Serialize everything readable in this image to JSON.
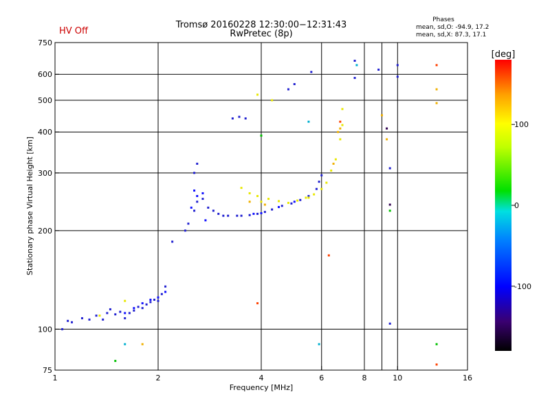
{
  "header": {
    "status": "HV Off",
    "status_color": "#cc0000",
    "title": "Tromsø 20160228 12:30:00−12:31:43",
    "subtitle": "RwPretec (8p)",
    "phase_heading": "Phases",
    "phase_o": "mean, sd,O: -94.9, 17.2",
    "phase_x": "mean, sd,X:  87.3, 17.1"
  },
  "chart_data": {
    "type": "scatter",
    "xlabel": "Frequency [MHz]",
    "ylabel": "Stationary phase Virtual Height [km]",
    "x_scale": "log",
    "y_scale": "log",
    "xlim": [
      1,
      16
    ],
    "ylim": [
      75,
      750
    ],
    "x_ticks": [
      1,
      2,
      4,
      6,
      8,
      10,
      16
    ],
    "y_ticks": [
      75,
      100,
      200,
      300,
      400,
      500,
      600,
      750
    ],
    "x_major_lines": [
      2,
      4,
      6,
      10
    ],
    "x_minor_lines": [
      8,
      9
    ],
    "y_major_lines": [
      100,
      200,
      300,
      400,
      500,
      600
    ],
    "grid": true,
    "colorbar": {
      "label": "[deg]",
      "min": -180,
      "max": 180,
      "ticks": [
        100,
        0,
        -100
      ]
    },
    "series": [
      {
        "color": "#2020d0",
        "points": [
          [
            1.05,
            100
          ],
          [
            1.09,
            106
          ],
          [
            1.12,
            105
          ],
          [
            1.2,
            108
          ],
          [
            1.26,
            107
          ],
          [
            1.32,
            110
          ],
          [
            1.38,
            107
          ],
          [
            1.42,
            112
          ],
          [
            1.45,
            115
          ],
          [
            1.5,
            111
          ],
          [
            1.55,
            113
          ],
          [
            1.6,
            108
          ],
          [
            1.65,
            112
          ],
          [
            1.7,
            114
          ],
          [
            1.75,
            117
          ],
          [
            1.8,
            116
          ],
          [
            1.85,
            119
          ],
          [
            1.9,
            121
          ],
          [
            1.95,
            123
          ],
          [
            2.0,
            122
          ],
          [
            2.05,
            128
          ],
          [
            2.1,
            135
          ],
          [
            2.2,
            185
          ],
          [
            2.4,
            200
          ],
          [
            2.45,
            210
          ],
          [
            2.55,
            230
          ],
          [
            2.6,
            245
          ],
          [
            2.7,
            250
          ],
          [
            2.8,
            235
          ],
          [
            2.9,
            230
          ],
          [
            3.0,
            225
          ],
          [
            3.1,
            222
          ],
          [
            3.2,
            222
          ],
          [
            3.4,
            222
          ],
          [
            3.5,
            222
          ],
          [
            3.7,
            223
          ],
          [
            3.9,
            225
          ],
          [
            4.1,
            228
          ],
          [
            4.3,
            232
          ],
          [
            4.6,
            238
          ],
          [
            4.9,
            242
          ],
          [
            5.2,
            248
          ],
          [
            5.5,
            255
          ],
          [
            5.8,
            268
          ],
          [
            5.9,
            282
          ],
          [
            6.0,
            295
          ],
          [
            2.6,
            320
          ],
          [
            2.55,
            300
          ],
          [
            3.3,
            440
          ],
          [
            3.45,
            445
          ],
          [
            3.6,
            440
          ],
          [
            4.8,
            540
          ],
          [
            5.0,
            560
          ],
          [
            5.6,
            610
          ],
          [
            7.5,
            660
          ],
          [
            7.5,
            585
          ],
          [
            8.8,
            620
          ],
          [
            9.5,
            104
          ],
          [
            9.5,
            310
          ],
          [
            10,
            640
          ],
          [
            10,
            590
          ]
        ]
      },
      {
        "color": "#1010ff",
        "points": [
          [
            1.6,
            112
          ],
          [
            1.7,
            116
          ],
          [
            1.8,
            120
          ],
          [
            1.9,
            123
          ],
          [
            2.0,
            125
          ],
          [
            2.1,
            130
          ],
          [
            2.5,
            235
          ],
          [
            2.6,
            255
          ],
          [
            2.7,
            260
          ],
          [
            2.75,
            215
          ],
          [
            2.55,
            265
          ],
          [
            3.8,
            225
          ],
          [
            4.0,
            226
          ],
          [
            4.5,
            236
          ],
          [
            5.0,
            245
          ]
        ]
      },
      {
        "color": "#e8e800",
        "points": [
          [
            3.5,
            270
          ],
          [
            3.7,
            260
          ],
          [
            3.9,
            255
          ],
          [
            4.2,
            250
          ],
          [
            4.5,
            246
          ],
          [
            4.8,
            243
          ],
          [
            5.1,
            247
          ],
          [
            5.4,
            252
          ],
          [
            5.7,
            258
          ],
          [
            6.0,
            268
          ],
          [
            6.2,
            280
          ],
          [
            6.4,
            305
          ],
          [
            6.6,
            330
          ],
          [
            6.8,
            380
          ],
          [
            6.9,
            420
          ],
          [
            6.9,
            470
          ],
          [
            3.9,
            520
          ],
          [
            4.3,
            500
          ],
          [
            1.35,
            110
          ],
          [
            1.6,
            122
          ],
          [
            4.0,
            245
          ],
          [
            5.5,
            252
          ]
        ]
      },
      {
        "color": "#f0b000",
        "points": [
          [
            6.7,
            400
          ],
          [
            6.8,
            410
          ],
          [
            6.5,
            320
          ],
          [
            3.7,
            245
          ],
          [
            4.1,
            240
          ],
          [
            13.0,
            540
          ],
          [
            9.3,
            380
          ],
          [
            9.0,
            450
          ],
          [
            1.8,
            90
          ],
          [
            13,
            490
          ]
        ]
      },
      {
        "color": "#ff4000",
        "points": [
          [
            6.8,
            430
          ],
          [
            13.0,
            640
          ],
          [
            6.3,
            168
          ],
          [
            3.9,
            120
          ],
          [
            13,
            78
          ]
        ]
      },
      {
        "color": "#00c000",
        "points": [
          [
            13,
            90
          ],
          [
            1.5,
            80
          ],
          [
            9.5,
            230
          ],
          [
            4.0,
            390
          ]
        ]
      },
      {
        "color": "#00b0d0",
        "points": [
          [
            5.5,
            430
          ],
          [
            7.6,
            640
          ],
          [
            5.9,
            90
          ],
          [
            1.6,
            90
          ]
        ]
      },
      {
        "color": "#300050",
        "points": [
          [
            9.3,
            410
          ],
          [
            9.5,
            240
          ]
        ]
      }
    ]
  }
}
